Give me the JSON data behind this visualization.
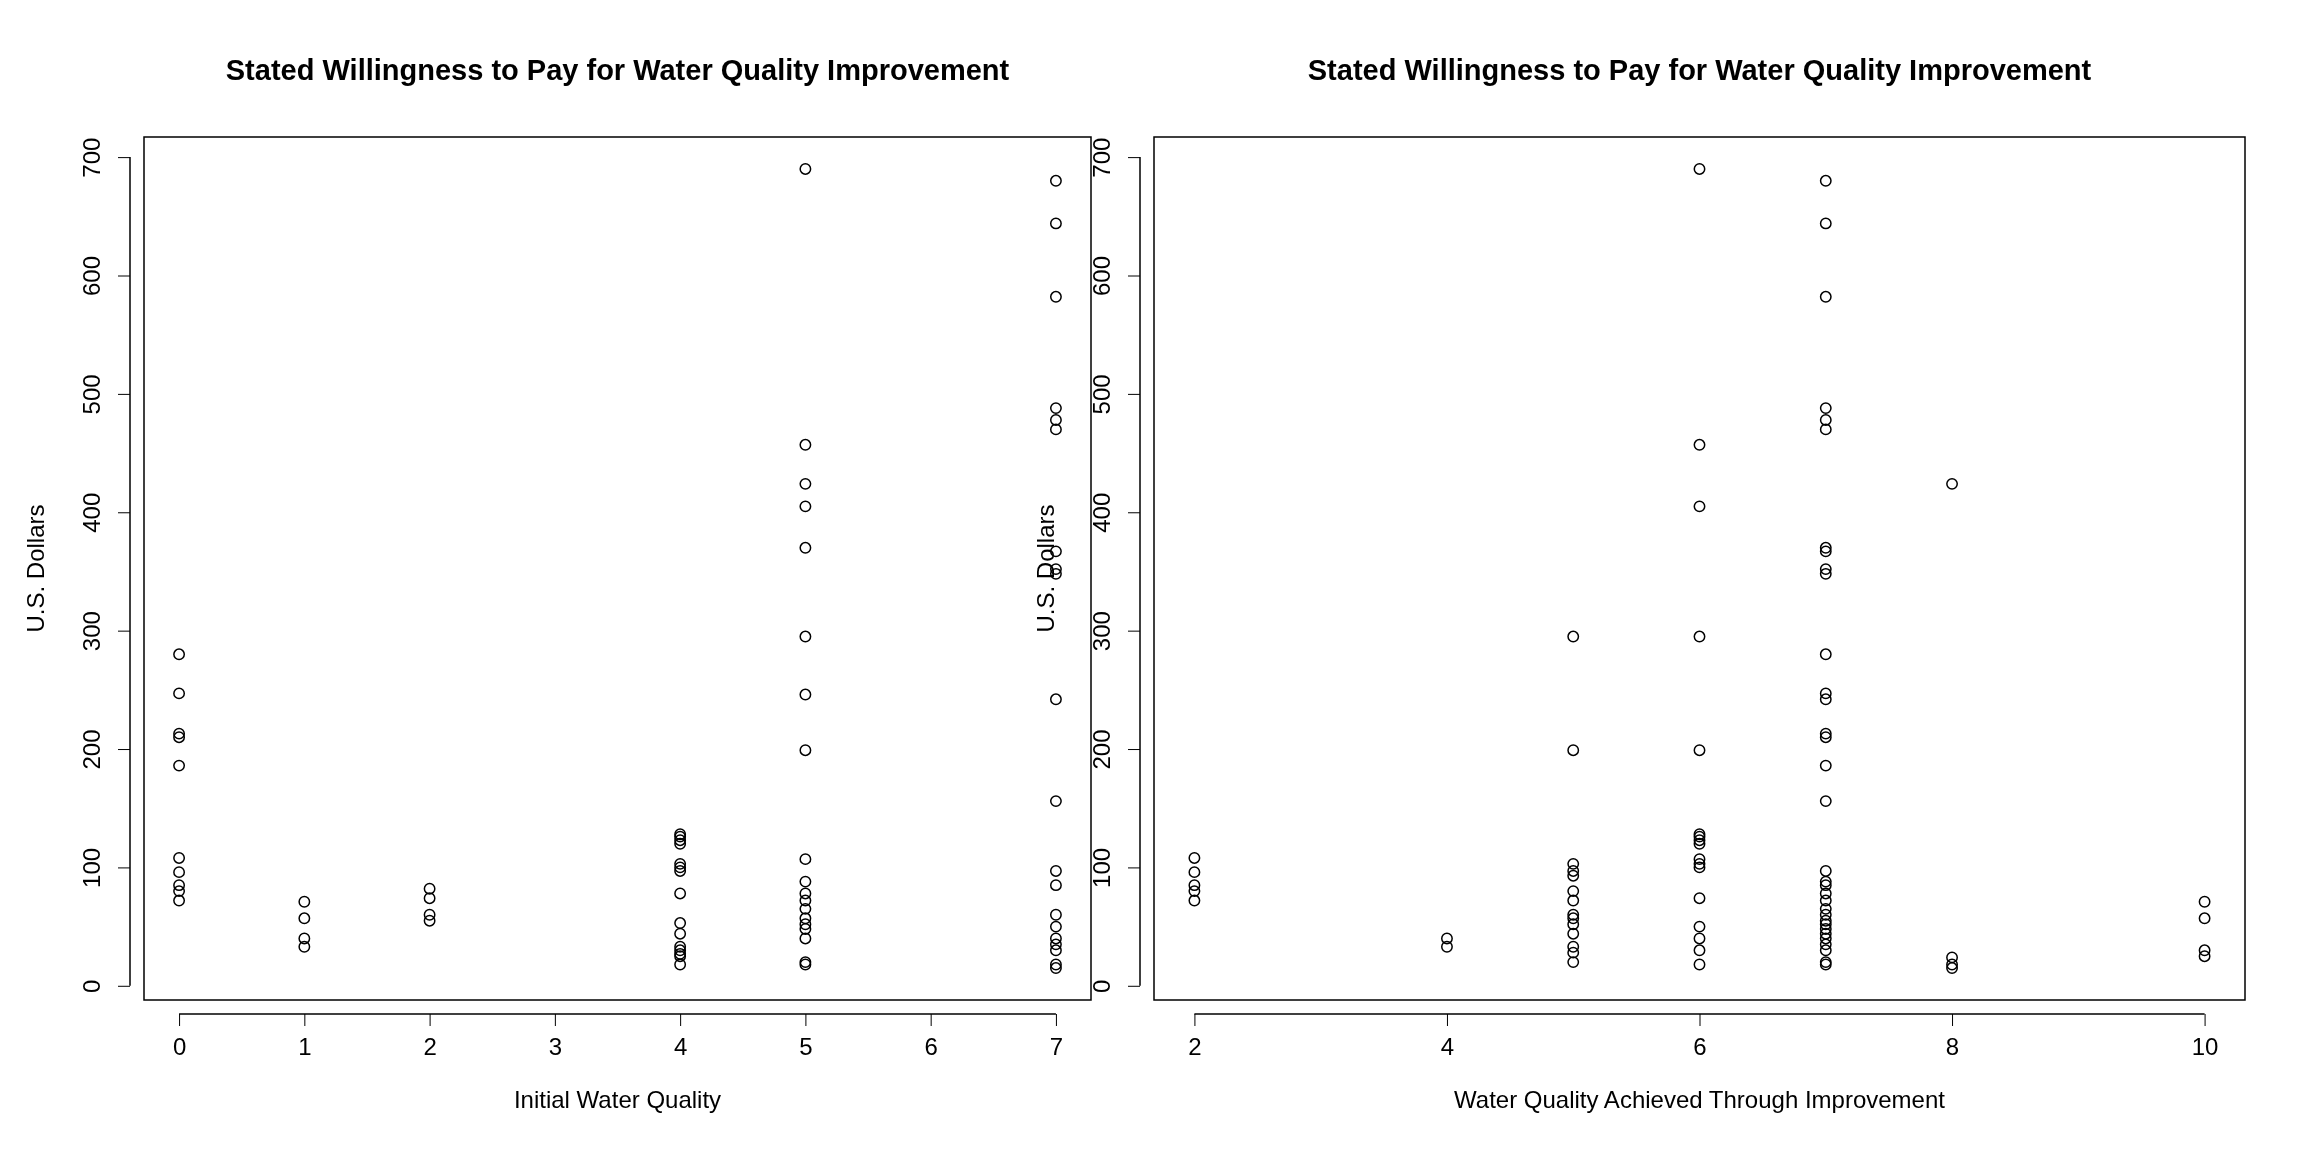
{
  "chart_data": [
    {
      "type": "scatter",
      "title": "Stated Willingness to Pay for Water Quality Improvement",
      "xlabel": "Initial Water Quality",
      "ylabel": "U.S. Dollars",
      "xlim": [
        -0.28,
        7.28
      ],
      "ylim": [
        -12,
        717
      ],
      "xticks": [
        0,
        1,
        2,
        3,
        4,
        5,
        6,
        7
      ],
      "yticks": [
        0,
        100,
        200,
        300,
        400,
        500,
        600,
        700
      ],
      "marker": "circle",
      "series": [
        {
          "color": "#000000",
          "x": [
            0,
            0,
            0,
            0,
            0,
            0,
            0,
            0,
            0,
            0,
            1,
            1,
            1,
            1,
            2,
            2,
            2,
            2,
            4,
            4,
            4,
            4,
            4,
            4,
            4,
            4,
            4,
            4,
            4,
            4,
            4,
            4,
            4,
            5,
            5,
            5,
            5,
            5,
            5,
            5,
            5,
            5,
            5,
            5,
            5,
            5,
            5,
            5,
            5,
            5,
            5,
            5,
            7,
            7,
            7,
            7,
            7,
            7,
            7,
            7,
            7,
            7,
            7,
            7,
            7,
            7,
            7,
            7,
            7,
            7,
            7,
            7
          ],
          "values": [
            280,
            247,
            213,
            210,
            186,
            108,
            96,
            85,
            80,
            72,
            71,
            57,
            40,
            33,
            82,
            74,
            60,
            55,
            128,
            126,
            123,
            120,
            103,
            100,
            97,
            78,
            53,
            44,
            33,
            30,
            27,
            25,
            18,
            690,
            457,
            424,
            405,
            370,
            295,
            246,
            199,
            107,
            88,
            78,
            72,
            65,
            57,
            52,
            48,
            40,
            20,
            18,
            680,
            644,
            582,
            488,
            478,
            470,
            367,
            352,
            348,
            242,
            156,
            97,
            85,
            60,
            50,
            40,
            35,
            30,
            18,
            15
          ]
        }
      ]
    },
    {
      "type": "scatter",
      "title": "Stated Willingness to Pay for Water Quality Improvement",
      "xlabel": "Water Quality Achieved Through Improvement",
      "ylabel": "U.S. Dollars",
      "xlim": [
        1.68,
        10.32
      ],
      "ylim": [
        -12,
        717
      ],
      "xticks": [
        2,
        4,
        6,
        8,
        10
      ],
      "yticks": [
        0,
        100,
        200,
        300,
        400,
        500,
        600,
        700
      ],
      "marker": "circle",
      "series": [
        {
          "color": "#000000",
          "x": [
            2,
            2,
            2,
            2,
            2,
            4,
            4,
            5,
            5,
            5,
            5,
            5,
            5,
            5,
            5,
            5,
            5,
            5,
            5,
            5,
            5,
            6,
            6,
            6,
            6,
            6,
            6,
            6,
            6,
            6,
            6,
            6,
            6,
            6,
            6,
            6,
            6,
            6,
            7,
            7,
            7,
            7,
            7,
            7,
            7,
            7,
            7,
            7,
            7,
            7,
            7,
            7,
            7,
            7,
            7,
            7,
            7,
            7,
            7,
            7,
            7,
            7,
            7,
            7,
            7,
            7,
            7,
            7,
            7,
            7,
            7,
            8,
            8,
            8,
            8,
            10,
            10,
            10,
            10
          ],
          "values": [
            108,
            96,
            85,
            80,
            72,
            40,
            33,
            295,
            199,
            103,
            97,
            93,
            80,
            72,
            60,
            57,
            52,
            44,
            33,
            28,
            20,
            690,
            457,
            405,
            295,
            199,
            128,
            126,
            123,
            120,
            107,
            103,
            100,
            74,
            50,
            40,
            30,
            18,
            680,
            644,
            582,
            488,
            478,
            470,
            370,
            367,
            352,
            348,
            280,
            247,
            242,
            213,
            210,
            186,
            156,
            97,
            88,
            85,
            78,
            72,
            65,
            60,
            55,
            52,
            48,
            44,
            40,
            35,
            30,
            20,
            18,
            424,
            24,
            18,
            15,
            71,
            57,
            30,
            25
          ]
        }
      ]
    }
  ]
}
